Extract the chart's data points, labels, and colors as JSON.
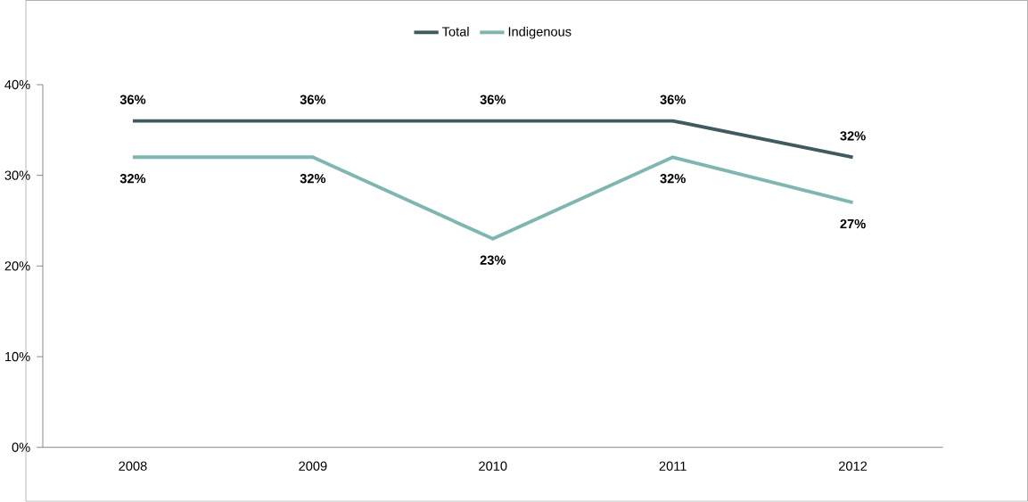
{
  "chart_data": {
    "type": "line",
    "categories": [
      "2008",
      "2009",
      "2010",
      "2011",
      "2012"
    ],
    "series": [
      {
        "name": "Total",
        "color": "#3f5b5f",
        "values": [
          36,
          36,
          36,
          36,
          32
        ],
        "value_labels": [
          "36%",
          "36%",
          "36%",
          "36%",
          "32%"
        ]
      },
      {
        "name": "Indigenous",
        "color": "#7fb6b1",
        "values": [
          32,
          32,
          23,
          32,
          27
        ],
        "value_labels": [
          "32%",
          "32%",
          "23%",
          "32%",
          "27%"
        ]
      }
    ],
    "ylim": [
      0,
      40
    ],
    "yticks": [
      {
        "value": 0,
        "label": "0%"
      },
      {
        "value": 10,
        "label": "10%"
      },
      {
        "value": 20,
        "label": "20%"
      },
      {
        "value": 30,
        "label": "30%"
      },
      {
        "value": 40,
        "label": "40%"
      }
    ],
    "grid": false,
    "legend": "top",
    "marker": "none",
    "line_style": "solid"
  }
}
